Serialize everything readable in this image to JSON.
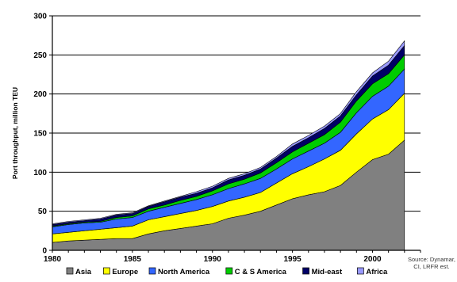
{
  "chart_data": {
    "type": "area",
    "stacked": true,
    "title": "",
    "xlabel": "",
    "ylabel": "Port throughput, million TEU",
    "xlim": [
      1980,
      2003
    ],
    "ylim": [
      0,
      300
    ],
    "x_ticks": [
      1980,
      1985,
      1990,
      1995,
      2000
    ],
    "y_ticks": [
      0,
      50,
      100,
      150,
      200,
      250,
      300
    ],
    "grid": true,
    "legend_position": "bottom",
    "x": [
      1980,
      1981,
      1982,
      1983,
      1984,
      1985,
      1986,
      1987,
      1988,
      1989,
      1990,
      1991,
      1992,
      1993,
      1994,
      1995,
      1996,
      1997,
      1998,
      1999,
      2000,
      2001,
      2002
    ],
    "series": [
      {
        "name": "Asia",
        "color": "#808080",
        "values": [
          10,
          12,
          13,
          14,
          15,
          15,
          21,
          25,
          28,
          31,
          34,
          41,
          45,
          50,
          58,
          66,
          71,
          75,
          83,
          100,
          116,
          123,
          141
        ]
      },
      {
        "name": "Europe",
        "color": "#ffff00",
        "values": [
          11,
          11,
          12,
          13,
          14,
          16,
          18,
          18,
          19,
          20,
          22,
          22,
          23,
          24,
          28,
          32,
          36,
          42,
          45,
          49,
          52,
          57,
          60
        ]
      },
      {
        "name": "North America",
        "color": "#3366ff",
        "values": [
          9,
          10,
          10,
          9,
          11,
          11,
          11,
          12,
          13,
          14,
          15,
          16,
          17,
          18,
          18,
          19,
          20,
          20,
          23,
          27,
          29,
          30,
          31
        ]
      },
      {
        "name": "C & S America",
        "color": "#00cc00",
        "values": [
          1,
          1,
          1,
          1,
          2,
          2,
          3,
          3,
          4,
          4,
          5,
          6,
          6,
          7,
          8,
          9,
          10,
          11,
          13,
          15,
          16,
          16,
          18
        ]
      },
      {
        "name": "Mid-east",
        "color": "#000066",
        "values": [
          2,
          2,
          2,
          3,
          3,
          3,
          3,
          4,
          4,
          4,
          4,
          5,
          5,
          5,
          6,
          7,
          7,
          8,
          8,
          8,
          10,
          11,
          12
        ]
      },
      {
        "name": "Africa",
        "color": "#9999ff",
        "values": [
          1,
          1,
          1,
          1,
          1,
          1,
          1,
          1,
          1,
          2,
          2,
          2,
          2,
          2,
          2,
          3,
          3,
          3,
          3,
          4,
          4,
          5,
          6
        ]
      }
    ],
    "source_lines": [
      "Source: Dynamar,",
      "CI, LRFR est."
    ]
  }
}
